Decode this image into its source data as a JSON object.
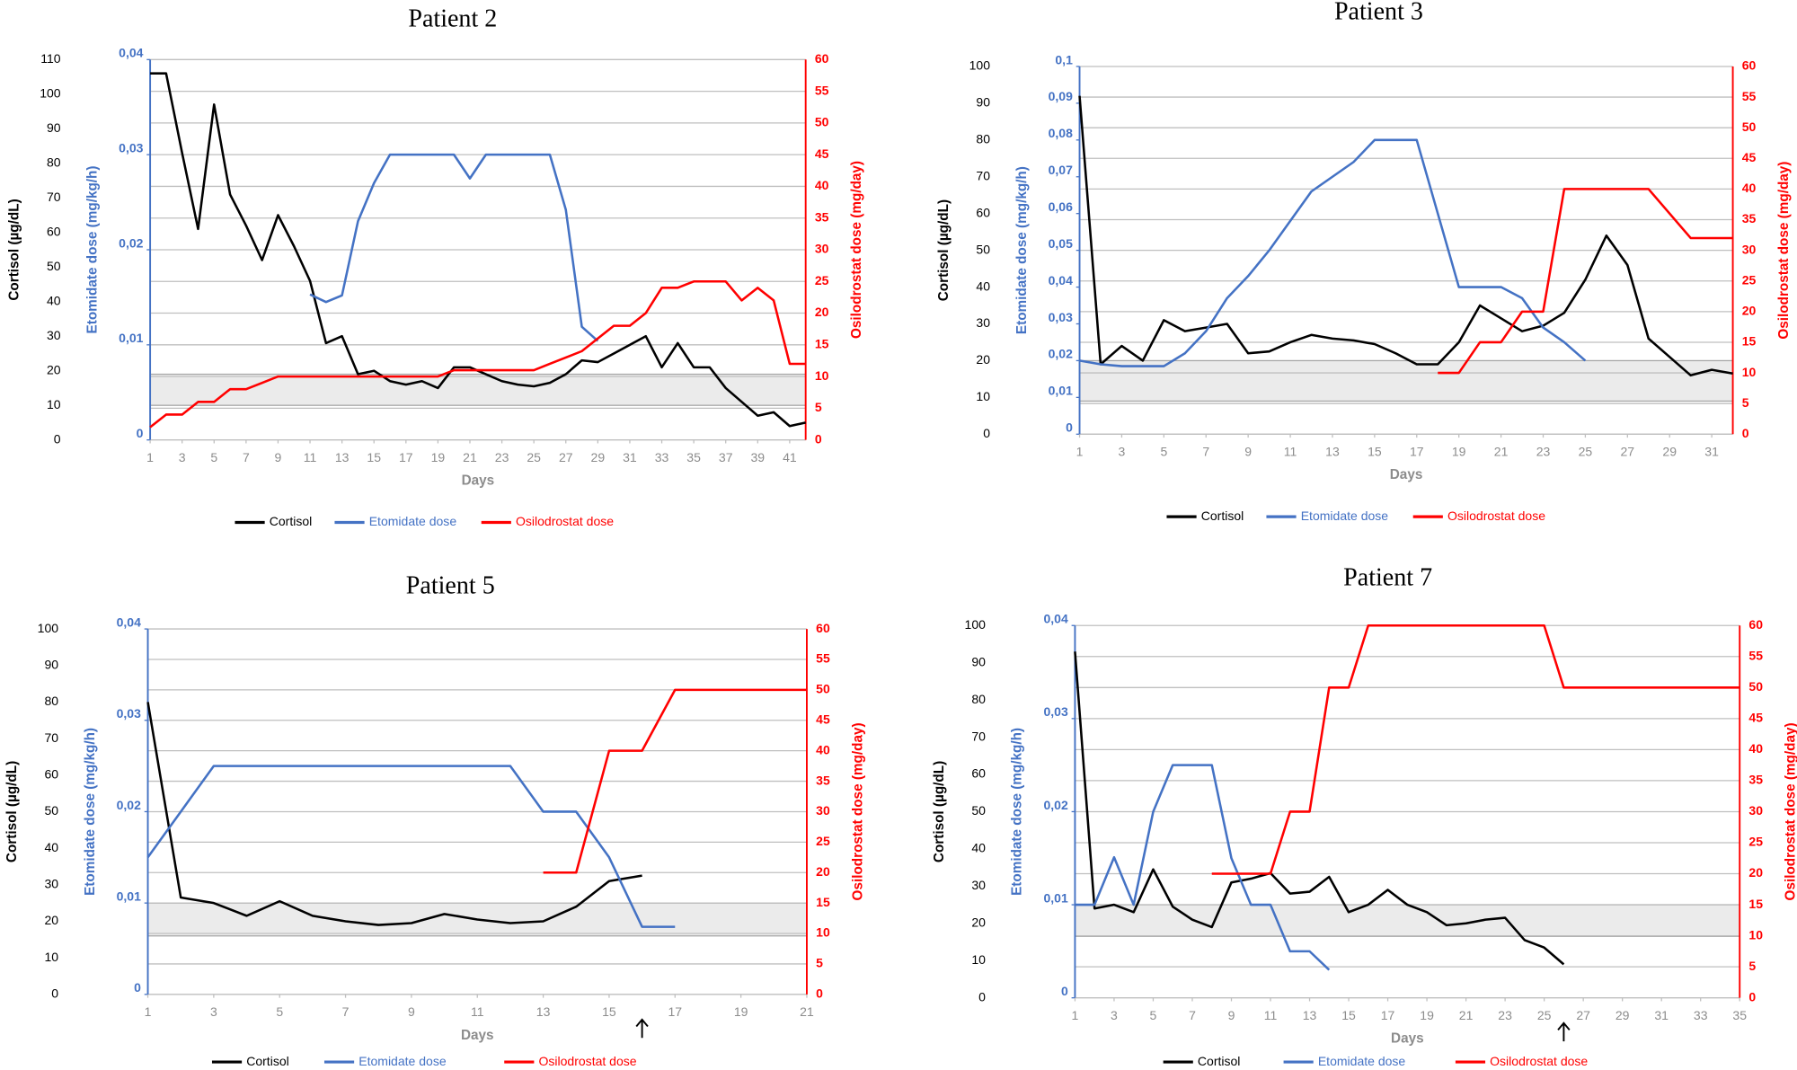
{
  "chart_data": [
    {
      "type": "line",
      "title": "Patient 2",
      "x_label": "Days",
      "y_label": "Cortisol (µg/dL)",
      "y2_label": "Etomidate dose (mg/kg/h)",
      "y3_label": "Osilodrostat  dose (mg/day)",
      "x": [
        1,
        2,
        3,
        4,
        5,
        6,
        7,
        8,
        9,
        10,
        11,
        12,
        13,
        14,
        15,
        16,
        17,
        18,
        19,
        20,
        21,
        22,
        23,
        24,
        25,
        26,
        27,
        28,
        29,
        30,
        31,
        32,
        33,
        34,
        35,
        36,
        37,
        38,
        39,
        40,
        41,
        42
      ],
      "xlim": [
        1,
        42
      ],
      "xticks": [
        1,
        3,
        5,
        7,
        9,
        11,
        13,
        15,
        17,
        19,
        21,
        23,
        25,
        27,
        29,
        31,
        33,
        35,
        37,
        39,
        41
      ],
      "ylim": [
        0,
        110
      ],
      "yticks": [
        0,
        10,
        20,
        30,
        40,
        50,
        60,
        70,
        80,
        90,
        100,
        110
      ],
      "y2lim": [
        0,
        0.04
      ],
      "y2ticks": [
        0,
        {
          "value": 0.01,
          "label": "0,01"
        },
        {
          "value": 0.02,
          "label": "0,02"
        },
        {
          "value": 0.03,
          "label": "0,03"
        },
        {
          "value": 0.04,
          "label": "0,04"
        }
      ],
      "y3lim": [
        0,
        60
      ],
      "y3ticks": [
        0,
        5,
        10,
        15,
        20,
        25,
        30,
        35,
        40,
        45,
        50,
        55,
        60
      ],
      "grid": true,
      "normal_range": [
        10,
        19
      ],
      "series": [
        {
          "name": "Cortisol",
          "color": "#000000",
          "values": [
            106,
            106,
            83,
            61,
            97,
            71,
            62,
            52,
            65,
            56,
            46,
            28,
            30,
            19,
            20,
            17,
            16,
            17,
            15,
            21,
            21,
            19,
            17,
            16,
            15.5,
            16.5,
            19,
            23,
            22.5,
            25,
            27.5,
            30,
            21,
            28,
            21,
            21,
            15,
            11,
            7,
            8,
            4,
            5
          ]
        },
        {
          "name": "Etomidate dose",
          "color": "#4472c4",
          "axis": "y2",
          "values": [
            null,
            null,
            null,
            null,
            null,
            null,
            null,
            null,
            null,
            null,
            0.0153,
            0.0145,
            0.0152,
            0.023,
            0.027,
            0.03,
            0.03,
            0.03,
            0.03,
            0.03,
            0.0275,
            0.03,
            0.03,
            0.03,
            0.03,
            0.03,
            0.0242,
            0.0119,
            0.0104,
            null,
            null,
            null,
            null,
            null,
            null,
            null,
            null,
            null,
            null,
            null,
            null,
            null
          ]
        },
        {
          "name": "Osilodrostat dose",
          "color": "#ff0000",
          "axis": "y3",
          "values": [
            2,
            4,
            4,
            6,
            6,
            8,
            8,
            9,
            10,
            10,
            10,
            10,
            10,
            10,
            10,
            10,
            10,
            10,
            10,
            11,
            11,
            11,
            11,
            11,
            11,
            12,
            13,
            14,
            16,
            18,
            18,
            20,
            24,
            24,
            25,
            25,
            25,
            22,
            24,
            22,
            12,
            12
          ]
        }
      ]
    },
    {
      "type": "line",
      "title": "Patient 3",
      "x_label": "Days",
      "y_label": "Cortisol (µg/dL)",
      "y2_label": "Etomidate dose (mg/kg/h)",
      "y3_label": "Osilodrostat  dose (mg/day)",
      "x": [
        1,
        2,
        3,
        4,
        5,
        6,
        7,
        8,
        9,
        10,
        11,
        12,
        13,
        14,
        15,
        16,
        17,
        18,
        19,
        20,
        21,
        22,
        23,
        24,
        25,
        26,
        27,
        28,
        29,
        30,
        31,
        32
      ],
      "xlim": [
        1,
        32
      ],
      "xticks": [
        1,
        3,
        5,
        7,
        9,
        11,
        13,
        15,
        17,
        19,
        21,
        23,
        25,
        27,
        29,
        31
      ],
      "ylim": [
        0,
        100
      ],
      "yticks": [
        0,
        10,
        20,
        30,
        40,
        50,
        60,
        70,
        80,
        90,
        100
      ],
      "y2lim": [
        0,
        0.1
      ],
      "y2ticks": [
        0,
        {
          "value": 0.01,
          "label": "0,01"
        },
        {
          "value": 0.02,
          "label": "0,02"
        },
        {
          "value": 0.03,
          "label": "0,03"
        },
        {
          "value": 0.04,
          "label": "0,04"
        },
        {
          "value": 0.05,
          "label": "0,05"
        },
        {
          "value": 0.06,
          "label": "0,06"
        },
        {
          "value": 0.07,
          "label": "0,07"
        },
        {
          "value": 0.08,
          "label": "0,08"
        },
        {
          "value": 0.09,
          "label": "0,09"
        },
        {
          "value": 0.1,
          "label": "0,1"
        }
      ],
      "y3lim": [
        0,
        60
      ],
      "y3ticks": [
        0,
        5,
        10,
        15,
        20,
        25,
        30,
        35,
        40,
        45,
        50,
        55,
        60
      ],
      "grid": true,
      "normal_range": [
        9,
        20
      ],
      "series": [
        {
          "name": "Cortisol",
          "color": "#000000",
          "values": [
            92,
            19,
            24,
            20,
            31,
            28,
            29,
            30,
            22,
            22.5,
            25,
            27,
            26,
            25.5,
            24.5,
            22,
            19,
            19,
            25,
            35,
            31.5,
            28,
            29.5,
            33,
            42,
            54,
            46,
            26,
            21,
            16,
            17.5,
            16.5
          ]
        },
        {
          "name": "Etomidate dose",
          "color": "#4472c4",
          "axis": "y2",
          "values": [
            0.02,
            0.019,
            0.0185,
            0.0185,
            0.0185,
            0.022,
            0.028,
            0.037,
            0.043,
            0.05,
            0.058,
            0.066,
            0.07,
            0.074,
            0.08,
            0.08,
            0.08,
            0.06,
            0.04,
            0.04,
            0.04,
            0.037,
            0.029,
            0.025,
            0.02,
            null,
            null,
            null,
            null,
            null,
            null,
            null
          ]
        },
        {
          "name": "Osilodrostat dose",
          "color": "#ff0000",
          "axis": "y3",
          "values": [
            null,
            null,
            null,
            null,
            null,
            null,
            null,
            null,
            null,
            null,
            null,
            null,
            null,
            null,
            null,
            null,
            null,
            10,
            10,
            15,
            15,
            20,
            20,
            40,
            40,
            40,
            40,
            40,
            36,
            32,
            32,
            32
          ]
        }
      ]
    },
    {
      "type": "line",
      "title": "Patient 5",
      "x_label": "Days",
      "y_label": "Cortisol (µg/dL)",
      "y2_label": "Etomidate dose (mg/kg/h)",
      "y3_label": "Osilodrostat  dose (mg/day)",
      "x": [
        1,
        2,
        3,
        4,
        5,
        6,
        7,
        8,
        9,
        10,
        11,
        12,
        13,
        14,
        15,
        16,
        17,
        18,
        19,
        20,
        21
      ],
      "xlim": [
        1,
        21
      ],
      "xticks": [
        1,
        3,
        5,
        7,
        9,
        11,
        13,
        15,
        17,
        19,
        21
      ],
      "ylim": [
        0,
        100
      ],
      "yticks": [
        0,
        10,
        20,
        30,
        40,
        50,
        60,
        70,
        80,
        90,
        100
      ],
      "y2lim": [
        0,
        0.04
      ],
      "y2ticks": [
        0,
        {
          "value": 0.01,
          "label": "0,01"
        },
        {
          "value": 0.02,
          "label": "0,02"
        },
        {
          "value": 0.03,
          "label": "0,03"
        },
        {
          "value": 0.04,
          "label": "0,04"
        }
      ],
      "y3lim": [
        0,
        60
      ],
      "y3ticks": [
        0,
        5,
        10,
        15,
        20,
        25,
        30,
        35,
        40,
        45,
        50,
        55,
        60
      ],
      "grid": true,
      "normal_range": [
        16,
        25
      ],
      "arrow_x": 16,
      "series": [
        {
          "name": "Cortisol",
          "color": "#000000",
          "values": [
            80,
            26.5,
            25,
            21.5,
            25.5,
            21.5,
            20,
            19,
            19.5,
            22,
            20.5,
            19.5,
            20,
            24,
            31,
            32.5,
            null,
            null,
            null,
            null,
            null
          ]
        },
        {
          "name": "Etomidate dose",
          "color": "#4472c4",
          "axis": "y2",
          "values": [
            0.015,
            0.02,
            0.025,
            0.025,
            0.025,
            0.025,
            0.025,
            0.025,
            0.025,
            0.025,
            0.025,
            0.025,
            0.02,
            0.02,
            0.015,
            0.0074,
            0.0074,
            null,
            null,
            null,
            null
          ]
        },
        {
          "name": "Osilodrostat dose",
          "color": "#ff0000",
          "axis": "y3",
          "values": [
            null,
            null,
            null,
            null,
            null,
            null,
            null,
            null,
            null,
            null,
            null,
            null,
            20,
            20,
            40,
            40,
            50,
            50,
            50,
            50,
            50
          ]
        }
      ]
    },
    {
      "type": "line",
      "title": "Patient 7",
      "x_label": "Days",
      "y_label": "Cortisol (µg/dL)",
      "y2_label": "Etomidate dose (mg/kg/h)",
      "y3_label": "Osilodrostat  dose (mg/day)",
      "x": [
        1,
        2,
        3,
        4,
        5,
        6,
        7,
        8,
        9,
        10,
        11,
        12,
        13,
        14,
        15,
        16,
        17,
        18,
        19,
        20,
        21,
        22,
        23,
        24,
        25,
        26,
        27,
        28,
        29,
        30,
        31,
        32,
        33,
        34,
        35
      ],
      "xlim": [
        1,
        35
      ],
      "xticks": [
        1,
        3,
        5,
        7,
        9,
        11,
        13,
        15,
        17,
        19,
        21,
        23,
        25,
        27,
        29,
        31,
        33,
        35
      ],
      "ylim": [
        0,
        100
      ],
      "yticks": [
        0,
        10,
        20,
        30,
        40,
        50,
        60,
        70,
        80,
        90,
        100
      ],
      "y2lim": [
        0,
        0.04
      ],
      "y2ticks": [
        0,
        {
          "value": 0.01,
          "label": "0,01"
        },
        {
          "value": 0.02,
          "label": "0,02"
        },
        {
          "value": 0.03,
          "label": "0,03"
        },
        {
          "value": 0.04,
          "label": "0,04"
        }
      ],
      "y3lim": [
        0,
        60
      ],
      "y3ticks": [
        0,
        5,
        10,
        15,
        20,
        25,
        30,
        35,
        40,
        45,
        50,
        55,
        60
      ],
      "grid": true,
      "normal_range": [
        16.5,
        25
      ],
      "arrow_x": 26,
      "series": [
        {
          "name": "Cortisol",
          "color": "#000000",
          "values": [
            93,
            24,
            25,
            23,
            34.5,
            24.5,
            21,
            19,
            31,
            32,
            33.5,
            28,
            28.5,
            32.5,
            23,
            25,
            29,
            25,
            23,
            19.5,
            20,
            21,
            21.5,
            15.5,
            13.5,
            9,
            null,
            null,
            null,
            null,
            null,
            null,
            null,
            null,
            null
          ]
        },
        {
          "name": "Etomidate dose",
          "color": "#4472c4",
          "axis": "y2",
          "values": [
            0.01,
            0.01,
            0.0151,
            0.01,
            0.02,
            0.025,
            0.025,
            0.025,
            0.015,
            0.01,
            0.01,
            0.005,
            0.005,
            0.003,
            null,
            null,
            null,
            null,
            null,
            null,
            null,
            null,
            null,
            null,
            null,
            null,
            null,
            null,
            null,
            null,
            null,
            null,
            null,
            null,
            null
          ]
        },
        {
          "name": "Osilodrostat dose",
          "color": "#ff0000",
          "axis": "y3",
          "values": [
            null,
            null,
            null,
            null,
            null,
            null,
            null,
            20,
            20,
            20,
            20,
            30,
            30,
            50,
            50,
            60,
            60,
            60,
            60,
            60,
            60,
            60,
            60,
            60,
            60,
            50,
            50,
            50,
            50,
            50,
            50,
            50,
            50,
            50,
            50
          ]
        }
      ]
    }
  ]
}
